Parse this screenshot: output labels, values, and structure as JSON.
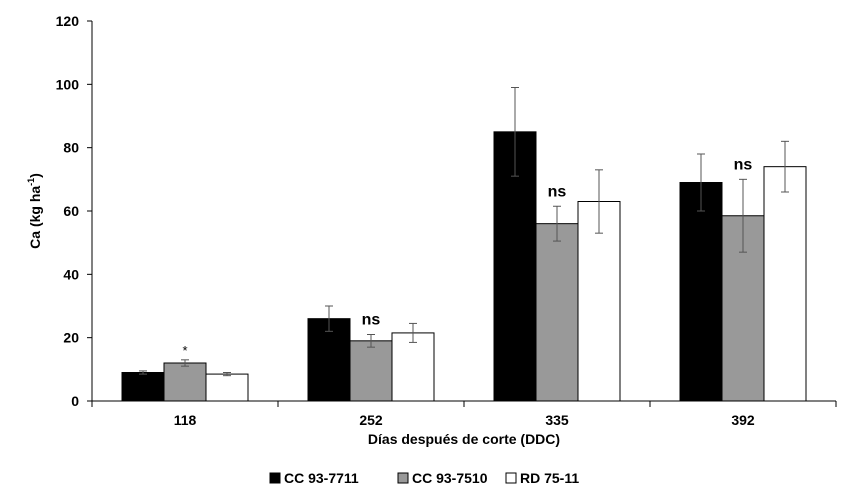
{
  "chart_data": {
    "type": "bar",
    "categories": [
      "118",
      "252",
      "335",
      "392"
    ],
    "series": [
      {
        "name": "CC 93-7711",
        "color": "#000000",
        "values": [
          9,
          26,
          85,
          69
        ],
        "errors": [
          0.5,
          4,
          14,
          9
        ]
      },
      {
        "name": "CC 93-7510",
        "color": "#999999",
        "values": [
          12,
          19,
          56,
          58.5
        ],
        "errors": [
          1,
          2,
          5.5,
          11.5
        ]
      },
      {
        "name": "RD 75-11",
        "color": "#ffffff",
        "values": [
          8.5,
          21.5,
          63,
          74
        ],
        "errors": [
          0.5,
          3,
          10,
          8
        ]
      }
    ],
    "annotations": [
      "*",
      "ns",
      "ns",
      "ns"
    ],
    "xlabel": "Días después de corte (DDC)",
    "ylabel_main": "Ca (kg ha",
    "ylabel_sup": "-1",
    "ylabel_close": ")",
    "ylim": [
      0,
      120
    ],
    "yticks": [
      "0",
      "20",
      "40",
      "60",
      "80",
      "100",
      "120"
    ],
    "legend_position": "bottom-center",
    "grid": false
  }
}
